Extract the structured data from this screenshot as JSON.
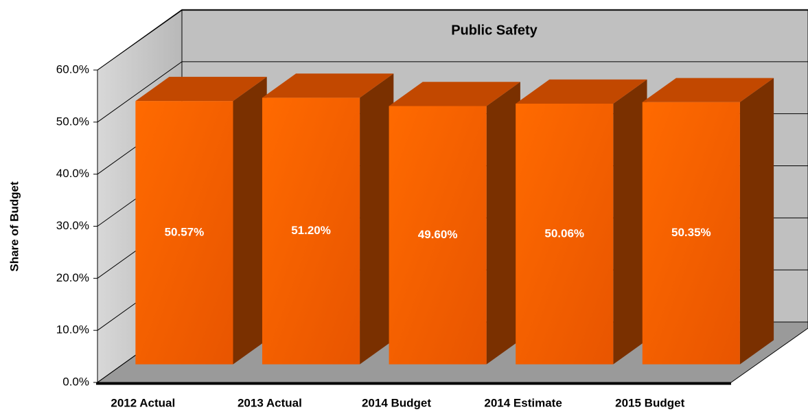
{
  "chart_data": {
    "type": "bar3d",
    "title": "Public Safety",
    "y_label": "Share of Budget",
    "categories": [
      "2012 Actual",
      "2013 Actual",
      "2014 Budget",
      "2014 Estimate",
      "2015 Budget"
    ],
    "values": [
      50.57,
      51.2,
      49.6,
      50.06,
      50.35
    ],
    "value_labels": [
      "50.57%",
      "51.20%",
      "49.60%",
      "50.06%",
      "50.35%"
    ],
    "color": "#ff6600",
    "ylim": [
      0,
      60
    ],
    "yticks": [
      {
        "value": 0,
        "label": "0.0%"
      },
      {
        "value": 10,
        "label": "10.0%"
      },
      {
        "value": 20,
        "label": "20.0%"
      },
      {
        "value": 30,
        "label": "30.0%"
      },
      {
        "value": 40,
        "label": "40.0%"
      },
      {
        "value": 50,
        "label": "50.0%"
      },
      {
        "value": 60,
        "label": "60.0%"
      }
    ],
    "grid": true
  }
}
